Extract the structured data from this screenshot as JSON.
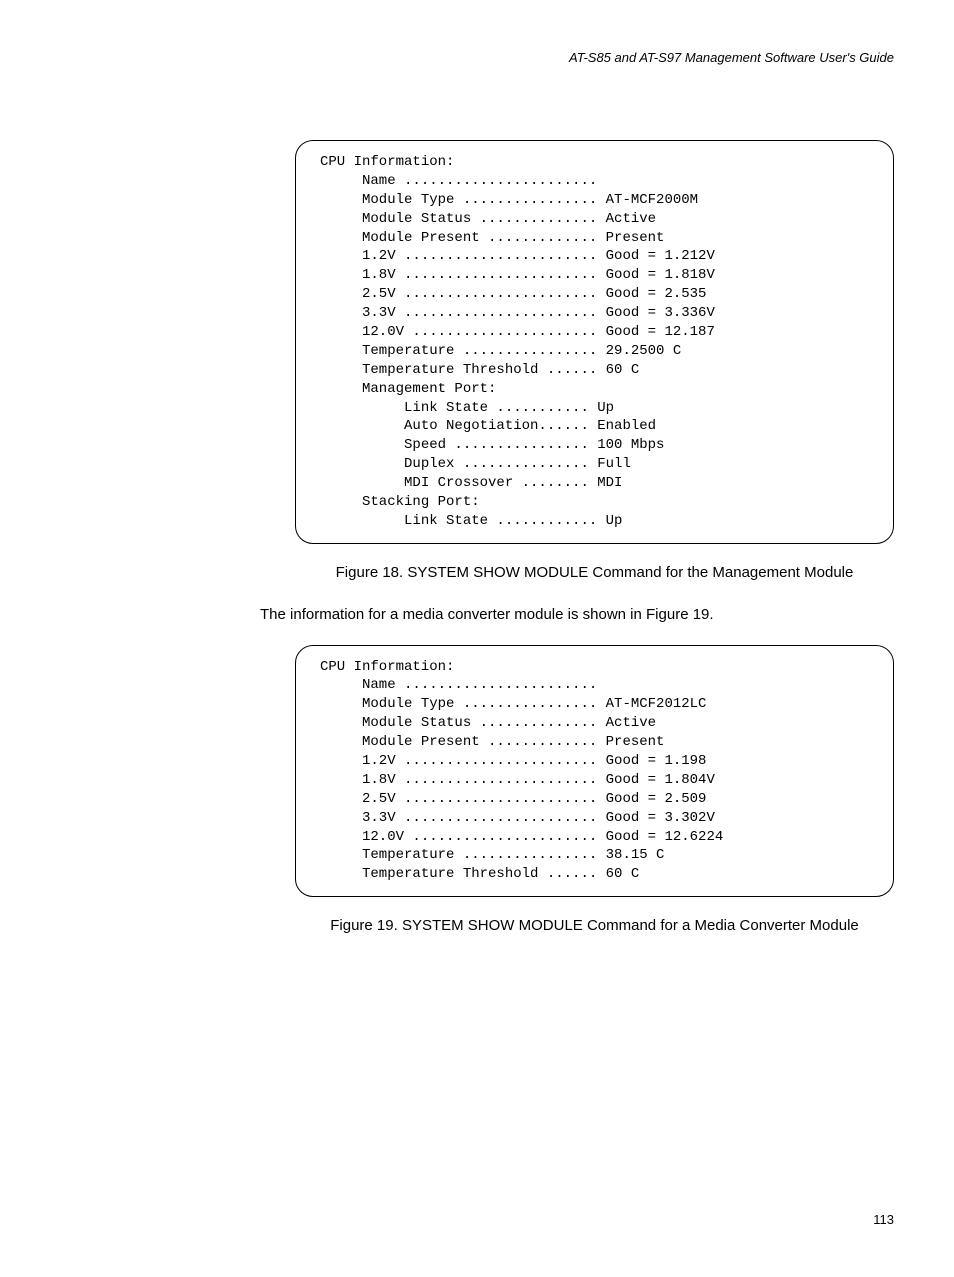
{
  "header": "AT-S85 and AT-S97 Management Software User's Guide",
  "terminal1": {
    "lines": [
      "CPU Information:",
      "     Name .......................",
      "     Module Type ................ AT-MCF2000M",
      "     Module Status .............. Active",
      "     Module Present ............. Present",
      "     1.2V ....................... Good = 1.212V",
      "     1.8V ....................... Good = 1.818V",
      "     2.5V ....................... Good = 2.535",
      "     3.3V ....................... Good = 3.336V",
      "     12.0V ...................... Good = 12.187",
      "     Temperature ................ 29.2500 C",
      "     Temperature Threshold ...... 60 C",
      "     Management Port:",
      "          Link State ........... Up",
      "          Auto Negotiation...... Enabled",
      "          Speed ................ 100 Mbps",
      "          Duplex ............... Full",
      "          MDI Crossover ........ MDI",
      "     Stacking Port:",
      "          Link State ............ Up"
    ]
  },
  "caption1": "Figure 18. SYSTEM SHOW MODULE Command for the Management Module",
  "body1": "The information for a media converter module is shown in Figure 19.",
  "terminal2": {
    "lines": [
      "CPU Information:",
      "     Name .......................",
      "     Module Type ................ AT-MCF2012LC",
      "     Module Status .............. Active",
      "     Module Present ............. Present",
      "     1.2V ....................... Good = 1.198",
      "     1.8V ....................... Good = 1.804V",
      "     2.5V ....................... Good = 2.509",
      "     3.3V ....................... Good = 3.302V",
      "     12.0V ...................... Good = 12.6224",
      "     Temperature ................ 38.15 C",
      "     Temperature Threshold ...... 60 C"
    ]
  },
  "caption2": "Figure 19. SYSTEM SHOW MODULE Command for a Media Converter Module",
  "pageNumber": "113"
}
